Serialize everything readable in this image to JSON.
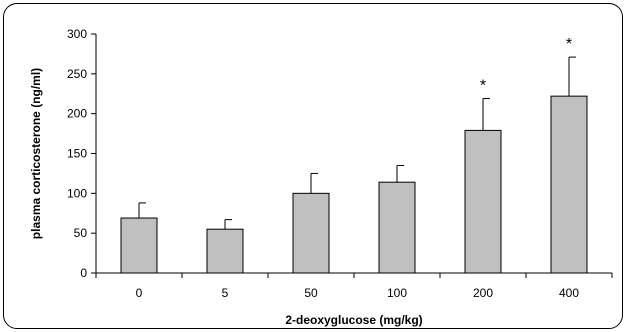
{
  "chart_data": {
    "type": "bar",
    "categories": [
      "0",
      "5",
      "50",
      "100",
      "200",
      "400"
    ],
    "values": [
      69,
      55,
      100,
      114,
      179,
      222
    ],
    "errors": [
      19,
      12,
      25,
      21,
      40,
      49
    ],
    "significance": [
      "",
      "",
      "",
      "",
      "*",
      "*"
    ],
    "xlabel": "2-deoxyglucose (mg/kg)",
    "ylabel": "plasma corticosterone (ng/ml)",
    "ylim": [
      0,
      300
    ],
    "yticks": [
      0,
      50,
      100,
      150,
      200,
      250,
      300
    ],
    "bar_color": "#c0c0c0",
    "grid": false,
    "legend": "none"
  }
}
